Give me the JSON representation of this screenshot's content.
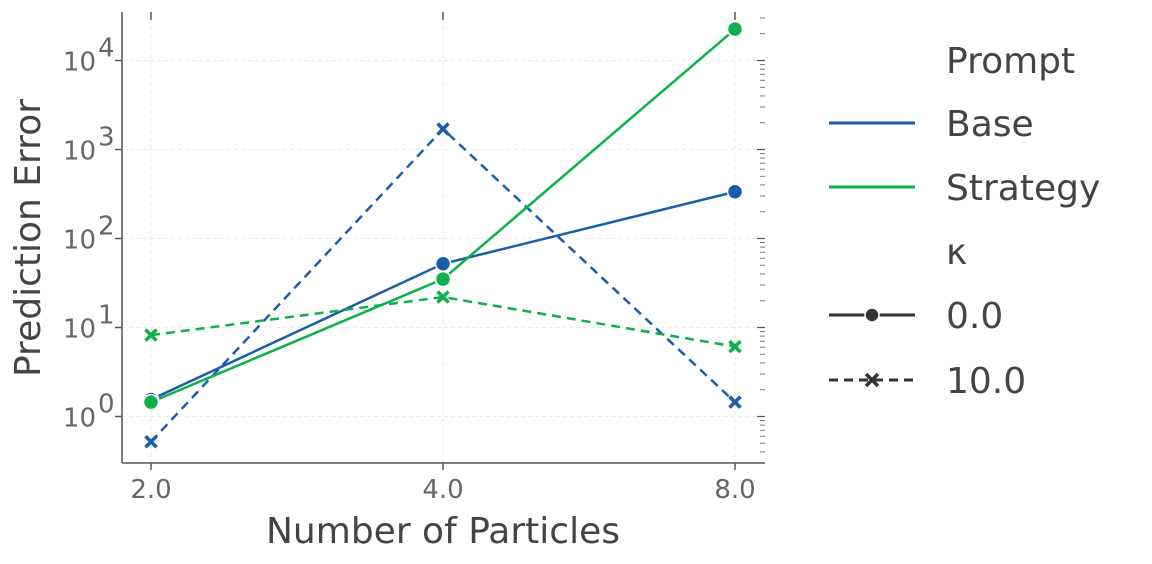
{
  "chart_data": {
    "type": "line",
    "xlabel": "Number of Particles",
    "ylabel": "Prediction Error",
    "x_ticks": [
      "2.0",
      "4.0",
      "8.0"
    ],
    "y_scale": "log",
    "y_ticks": [
      {
        "value": 1,
        "base": "10",
        "exp": "0"
      },
      {
        "value": 10,
        "base": "10",
        "exp": "1"
      },
      {
        "value": 100,
        "base": "10",
        "exp": "2"
      },
      {
        "value": 1000,
        "base": "10",
        "exp": "3"
      },
      {
        "value": 10000,
        "base": "10",
        "exp": "4"
      }
    ],
    "ylim": [
      0.3,
      60000
    ],
    "grid": true,
    "series": [
      {
        "prompt": "Base",
        "kappa": "0.0",
        "color": "#1a5ea8",
        "dash": "solid",
        "marker": "circle",
        "x": [
          2.0,
          4.0,
          8.0
        ],
        "y": [
          1.55,
          52,
          335
        ]
      },
      {
        "prompt": "Base",
        "kappa": "10.0",
        "color": "#1a5ea8",
        "dash": "dashed",
        "marker": "x",
        "x": [
          2.0,
          4.0,
          8.0
        ],
        "y": [
          0.52,
          1700,
          1.45
        ]
      },
      {
        "prompt": "Strategy",
        "kappa": "0.0",
        "color": "#0db04b",
        "dash": "solid",
        "marker": "circle",
        "x": [
          2.0,
          4.0,
          8.0
        ],
        "y": [
          1.45,
          35,
          22500
        ]
      },
      {
        "prompt": "Strategy",
        "kappa": "10.0",
        "color": "#0db04b",
        "dash": "dashed",
        "marker": "x",
        "x": [
          2.0,
          4.0,
          8.0
        ],
        "y": [
          8.2,
          22,
          6.1
        ]
      }
    ],
    "legend": {
      "placement": "right",
      "prompt_title": "Prompt",
      "prompt_entries": [
        {
          "label": "Base",
          "color": "#1a5ea8"
        },
        {
          "label": "Strategy",
          "color": "#0db04b"
        }
      ],
      "kappa_title": "κ",
      "kappa_entries": [
        {
          "label": "0.0",
          "style": "solid-circle"
        },
        {
          "label": "10.0",
          "style": "dashed-x"
        }
      ]
    }
  }
}
